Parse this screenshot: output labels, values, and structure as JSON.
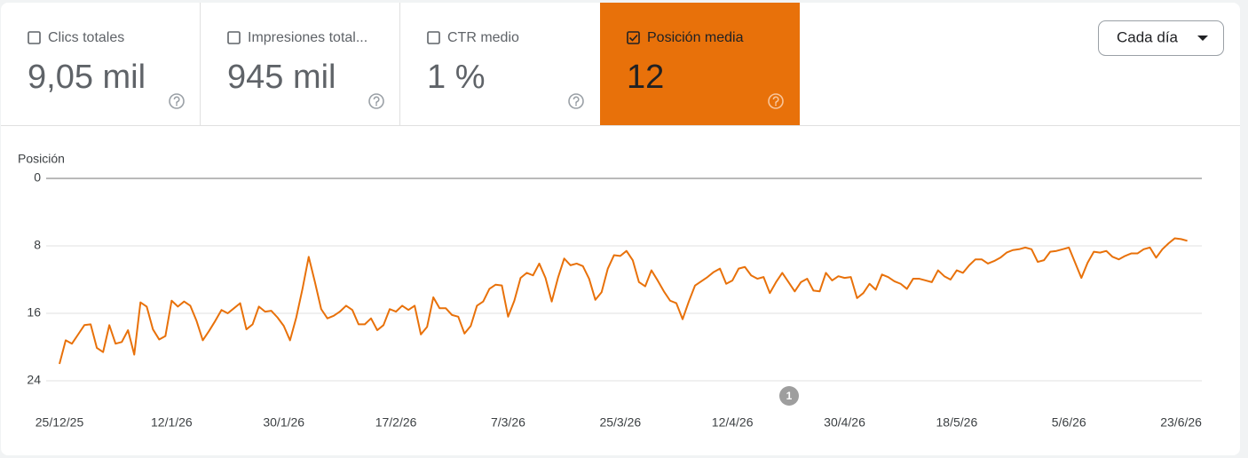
{
  "metrics": [
    {
      "label": "Clics totales",
      "value": "9,05 mil",
      "checked": false
    },
    {
      "label": "Impresiones total...",
      "value": "945 mil",
      "checked": false
    },
    {
      "label": "CTR medio",
      "value": "1 %",
      "checked": false
    },
    {
      "label": "Posición media",
      "value": "12",
      "checked": true,
      "color": "#e8710a"
    }
  ],
  "granularity": "Cada día",
  "chart_data": {
    "type": "line",
    "y_label": "Posición",
    "annotation": "1",
    "categories": [
      "25/12/25",
      null,
      null,
      null,
      null,
      null,
      null,
      null,
      null,
      null,
      null,
      null,
      null,
      null,
      null,
      null,
      null,
      null,
      "12/1/26",
      null,
      null,
      null,
      null,
      null,
      null,
      null,
      null,
      null,
      null,
      null,
      null,
      null,
      null,
      null,
      null,
      null,
      "30/1/26",
      null,
      null,
      null,
      null,
      null,
      null,
      null,
      null,
      null,
      null,
      null,
      null,
      null,
      null,
      null,
      null,
      null,
      "17/2/26",
      null,
      null,
      null,
      null,
      null,
      null,
      null,
      null,
      null,
      null,
      null,
      null,
      null,
      null,
      null,
      null,
      null,
      "7/3/26",
      null,
      null,
      null,
      null,
      null,
      null,
      null,
      null,
      null,
      null,
      null,
      null,
      null,
      null,
      null,
      null,
      null,
      "25/3/26",
      null,
      null,
      null,
      null,
      null,
      null,
      null,
      null,
      null,
      null,
      null,
      null,
      null,
      null,
      null,
      null,
      null,
      "12/4/26",
      null,
      null,
      null,
      null,
      null,
      null,
      null,
      null,
      null,
      null,
      null,
      null,
      null,
      null,
      null,
      null,
      null,
      "30/4/26",
      null,
      null,
      null,
      null,
      null,
      null,
      null,
      null,
      null,
      null,
      null,
      null,
      null,
      null,
      null,
      null,
      null,
      "18/5/26",
      null,
      null,
      null,
      null,
      null,
      null,
      null,
      null,
      null,
      null,
      null,
      null,
      null,
      null,
      null,
      null,
      null,
      "5/6/26",
      null,
      null,
      null,
      null,
      null,
      null,
      null,
      null,
      null,
      null,
      null,
      null,
      null,
      null,
      null,
      null,
      null,
      "23/6/26",
      null
    ],
    "series": [
      {
        "name": "Posición",
        "color": "#e8710a",
        "values": [
          22.0,
          19.2,
          19.6,
          18.5,
          17.4,
          17.3,
          20.1,
          20.6,
          17.4,
          19.6,
          19.4,
          18.0,
          20.9,
          14.7,
          15.2,
          17.9,
          19.1,
          18.7,
          14.5,
          15.2,
          14.6,
          15.1,
          16.9,
          19.2,
          18.1,
          16.9,
          15.6,
          16.0,
          15.4,
          14.8,
          17.9,
          17.3,
          15.2,
          15.8,
          15.7,
          16.5,
          17.5,
          19.2,
          16.5,
          13.1,
          9.3,
          12.3,
          15.5,
          16.6,
          16.3,
          15.8,
          15.1,
          15.6,
          17.3,
          17.3,
          16.6,
          18.0,
          17.4,
          15.5,
          15.8,
          15.1,
          15.6,
          15.1,
          18.5,
          17.6,
          14.1,
          15.4,
          15.4,
          16.2,
          16.4,
          18.4,
          17.5,
          15.1,
          14.6,
          13.1,
          12.6,
          12.7,
          16.4,
          14.5,
          11.8,
          11.2,
          11.5,
          10.1,
          11.8,
          14.6,
          11.8,
          9.5,
          10.3,
          10.1,
          10.4,
          11.9,
          14.4,
          13.5,
          10.7,
          9.1,
          9.2,
          8.6,
          9.7,
          12.3,
          12.8,
          10.9,
          12.1,
          13.4,
          14.5,
          14.8,
          16.7,
          14.6,
          12.7,
          12.2,
          11.7,
          11.1,
          10.7,
          12.5,
          12.1,
          10.7,
          10.5,
          11.5,
          11.9,
          11.7,
          13.6,
          12.3,
          11.2,
          12.3,
          13.4,
          12.3,
          11.9,
          13.3,
          13.4,
          11.2,
          12.1,
          11.6,
          11.8,
          11.7,
          14.2,
          13.6,
          12.5,
          13.2,
          11.4,
          11.7,
          12.2,
          12.5,
          13.1,
          11.9,
          11.9,
          12.1,
          12.3,
          10.9,
          11.6,
          12.0,
          10.9,
          11.2,
          10.3,
          9.6,
          9.6,
          10.1,
          9.8,
          9.4,
          8.8,
          8.5,
          8.4,
          8.2,
          8.4,
          9.9,
          9.7,
          8.7,
          8.6,
          8.4,
          8.2,
          10.0,
          11.8,
          10.0,
          8.7,
          8.8,
          8.6,
          9.3,
          9.6,
          9.2,
          8.9,
          8.9,
          8.4,
          8.2,
          9.4,
          8.4,
          7.7,
          7.1,
          7.2,
          7.4
        ]
      }
    ],
    "ylim": [
      24,
      0
    ],
    "yticks": [
      0,
      8,
      16,
      24
    ],
    "grid": true
  }
}
